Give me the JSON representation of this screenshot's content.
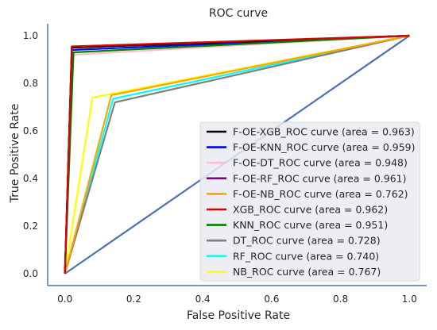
{
  "chart_data": {
    "type": "line",
    "title": "ROC curve",
    "xlabel": "False Positive Rate",
    "ylabel": "True Positive Rate",
    "xlim": [
      -0.05,
      1.05
    ],
    "ylim": [
      -0.05,
      1.05
    ],
    "x_ticks": [
      "0.0",
      "0.2",
      "0.4",
      "0.6",
      "0.8",
      "1.0"
    ],
    "y_ticks": [
      "0.0",
      "0.2",
      "0.4",
      "0.6",
      "0.8",
      "1.0"
    ],
    "grid": false,
    "legend_placement": "bottom-right",
    "series": [
      {
        "name": "F-OE-XGB_ROC curve (area = 0.963)",
        "color": "#000000",
        "points": [
          [
            0,
            0
          ],
          [
            0.02,
            0.95
          ],
          [
            1,
            1
          ]
        ]
      },
      {
        "name": "F-OE-KNN_ROC curve (area = 0.959)",
        "color": "#0000ff",
        "points": [
          [
            0,
            0
          ],
          [
            0.02,
            0.94
          ],
          [
            1,
            1
          ]
        ]
      },
      {
        "name": "F-OE-DT_ROC curve (area = 0.948)",
        "color": "#ffc0cb",
        "points": [
          [
            0,
            0
          ],
          [
            0.025,
            0.92
          ],
          [
            1,
            1
          ]
        ]
      },
      {
        "name": "F-OE-RF_ROC curve (area = 0.961)",
        "color": "#800080",
        "points": [
          [
            0,
            0
          ],
          [
            0.02,
            0.95
          ],
          [
            1,
            1
          ]
        ]
      },
      {
        "name": "F-OE-NB_ROC curve (area = 0.762)",
        "color": "#ffa500",
        "points": [
          [
            0,
            0
          ],
          [
            0.135,
            0.75
          ],
          [
            1,
            1
          ]
        ]
      },
      {
        "name": "XGB_ROC curve (area = 0.962)",
        "color": "#dd0000",
        "points": [
          [
            0,
            0
          ],
          [
            0.02,
            0.955
          ],
          [
            1,
            1
          ]
        ]
      },
      {
        "name": "KNN_ROC curve (area = 0.951)",
        "color": "#008000",
        "points": [
          [
            0,
            0
          ],
          [
            0.025,
            0.93
          ],
          [
            1,
            1
          ]
        ]
      },
      {
        "name": "DT_ROC curve (area = 0.728)",
        "color": "#808080",
        "points": [
          [
            0,
            0
          ],
          [
            0.145,
            0.72
          ],
          [
            1,
            1
          ]
        ]
      },
      {
        "name": "RF_ROC curve (area = 0.740)",
        "color": "#00ffff",
        "points": [
          [
            0,
            0
          ],
          [
            0.14,
            0.735
          ],
          [
            1,
            1
          ]
        ]
      },
      {
        "name": "NB_ROC curve (area = 0.767)",
        "color": "#ffff00",
        "points": [
          [
            0,
            0
          ],
          [
            0.08,
            0.74
          ],
          [
            1,
            1
          ]
        ]
      }
    ],
    "diagonal": {
      "color": "#4c72b0",
      "points": [
        [
          0,
          0
        ],
        [
          1,
          1
        ]
      ]
    }
  }
}
